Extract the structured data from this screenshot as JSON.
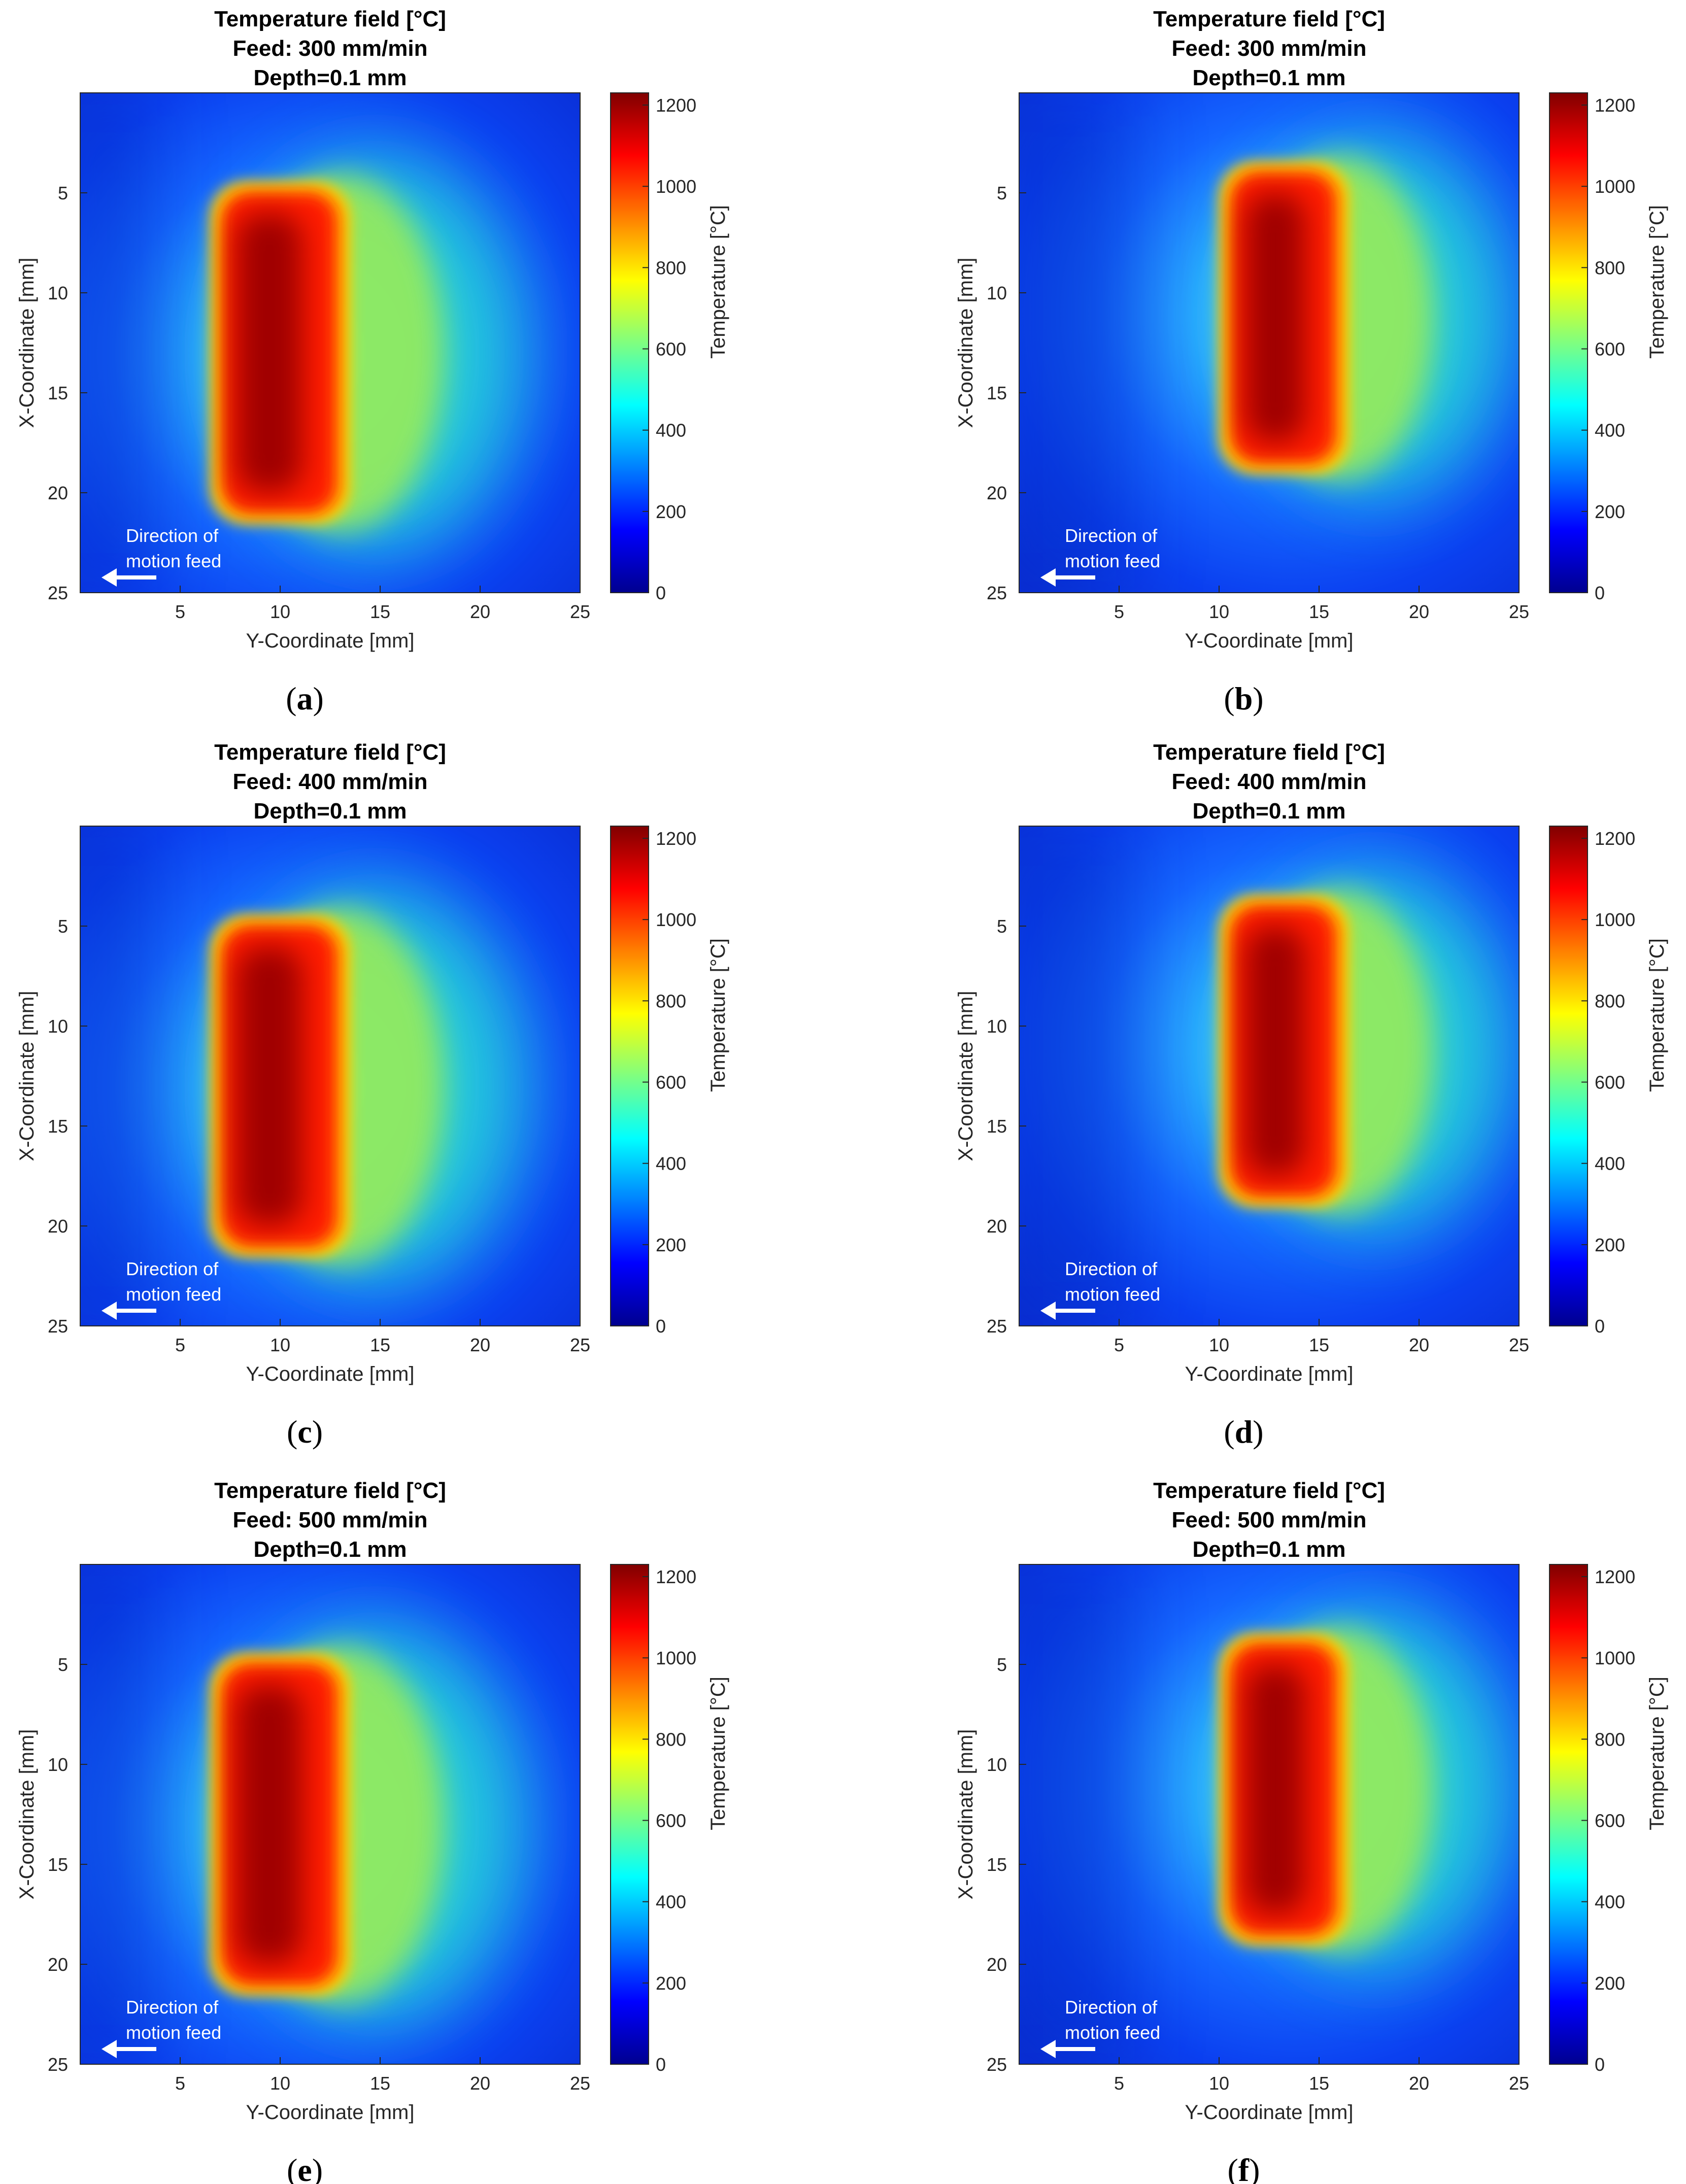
{
  "chart_data": [
    {
      "type": "heatmap",
      "label": "a",
      "title": [
        "Temperature field [°C]",
        "Feed: 300 mm/min",
        "Depth=0.1 mm"
      ],
      "feed_mm_per_min": 300,
      "depth_mm": 0.1,
      "xlabel": "Y-Coordinate [mm]",
      "ylabel": "X-Coordinate [mm]",
      "xlim": [
        0,
        25
      ],
      "ylim": [
        0,
        25
      ],
      "xticks": [
        5,
        10,
        15,
        20,
        25
      ],
      "yticks": [
        5,
        10,
        15,
        20,
        25
      ],
      "colorbar": {
        "label": "Temperature [°C]",
        "ticks": [
          0,
          200,
          400,
          600,
          800,
          1000,
          1200
        ],
        "range": [
          0,
          1230
        ]
      },
      "hot_zone": {
        "y_range_mm": [
          7,
          12.5
        ],
        "x_range_mm": [
          5,
          21
        ],
        "peak_center_y_mm": 10,
        "peak_center_x_mm": 13,
        "peak_temperature_c": 1230
      },
      "annotation": [
        "Direction of",
        "motion feed"
      ]
    },
    {
      "type": "heatmap",
      "label": "b",
      "title": [
        "Temperature field [°C]",
        "Feed: 300 mm/min",
        "Depth=0.1 mm"
      ],
      "feed_mm_per_min": 300,
      "depth_mm": 0.1,
      "xlabel": "Y-Coordinate [mm]",
      "ylabel": "X-Coordinate [mm]",
      "xlim": [
        0,
        25
      ],
      "ylim": [
        0,
        25
      ],
      "xticks": [
        5,
        10,
        15,
        20,
        25
      ],
      "yticks": [
        5,
        10,
        15,
        20,
        25
      ],
      "colorbar": {
        "label": "Temperature [°C]",
        "ticks": [
          0,
          200,
          400,
          600,
          800,
          1000,
          1200
        ],
        "range": [
          0,
          1230
        ]
      },
      "hot_zone": {
        "y_range_mm": [
          10.5,
          15.5
        ],
        "x_range_mm": [
          4,
          18.5
        ],
        "peak_center_y_mm": 12.5,
        "peak_center_x_mm": 11,
        "peak_temperature_c": 1230
      },
      "annotation": [
        "Direction of",
        "motion feed"
      ]
    },
    {
      "type": "heatmap",
      "label": "c",
      "title": [
        "Temperature field [°C]",
        "Feed: 400 mm/min",
        "Depth=0.1 mm"
      ],
      "feed_mm_per_min": 400,
      "depth_mm": 0.1,
      "xlabel": "Y-Coordinate [mm]",
      "ylabel": "X-Coordinate [mm]",
      "xlim": [
        0,
        25
      ],
      "ylim": [
        0,
        25
      ],
      "xticks": [
        5,
        10,
        15,
        20,
        25
      ],
      "yticks": [
        5,
        10,
        15,
        20,
        25
      ],
      "colorbar": {
        "label": "Temperature [°C]",
        "ticks": [
          0,
          200,
          400,
          600,
          800,
          1000,
          1200
        ],
        "range": [
          0,
          1230
        ]
      },
      "hot_zone": {
        "y_range_mm": [
          7,
          12.5
        ],
        "x_range_mm": [
          5,
          21
        ],
        "peak_center_y_mm": 10,
        "peak_center_x_mm": 13,
        "peak_temperature_c": 1230
      },
      "annotation": [
        "Direction of",
        "motion feed"
      ]
    },
    {
      "type": "heatmap",
      "label": "d",
      "title": [
        "Temperature field [°C]",
        "Feed: 400 mm/min",
        "Depth=0.1 mm"
      ],
      "feed_mm_per_min": 400,
      "depth_mm": 0.1,
      "xlabel": "Y-Coordinate [mm]",
      "ylabel": "X-Coordinate [mm]",
      "xlim": [
        0,
        25
      ],
      "ylim": [
        0,
        25
      ],
      "xticks": [
        5,
        10,
        15,
        20,
        25
      ],
      "yticks": [
        5,
        10,
        15,
        20,
        25
      ],
      "colorbar": {
        "label": "Temperature [°C]",
        "ticks": [
          0,
          200,
          400,
          600,
          800,
          1000,
          1200
        ],
        "range": [
          0,
          1230
        ]
      },
      "hot_zone": {
        "y_range_mm": [
          10.5,
          15.5
        ],
        "x_range_mm": [
          4,
          18.5
        ],
        "peak_center_y_mm": 12.5,
        "peak_center_x_mm": 11,
        "peak_temperature_c": 1230
      },
      "annotation": [
        "Direction of",
        "motion feed"
      ]
    },
    {
      "type": "heatmap",
      "label": "e",
      "title": [
        "Temperature field [°C]",
        "Feed: 500 mm/min",
        "Depth=0.1 mm"
      ],
      "feed_mm_per_min": 500,
      "depth_mm": 0.1,
      "xlabel": "Y-Coordinate [mm]",
      "ylabel": "X-Coordinate [mm]",
      "xlim": [
        0,
        25
      ],
      "ylim": [
        0,
        25
      ],
      "xticks": [
        5,
        10,
        15,
        20,
        25
      ],
      "yticks": [
        5,
        10,
        15,
        20,
        25
      ],
      "colorbar": {
        "label": "Temperature [°C]",
        "ticks": [
          0,
          200,
          400,
          600,
          800,
          1000,
          1200
        ],
        "range": [
          0,
          1230
        ]
      },
      "hot_zone": {
        "y_range_mm": [
          7,
          12.5
        ],
        "x_range_mm": [
          5,
          21
        ],
        "peak_center_y_mm": 10,
        "peak_center_x_mm": 13,
        "peak_temperature_c": 1230
      },
      "annotation": [
        "Direction of",
        "motion feed"
      ]
    },
    {
      "type": "heatmap",
      "label": "f",
      "title": [
        "Temperature field [°C]",
        "Feed: 500 mm/min",
        "Depth=0.1 mm"
      ],
      "feed_mm_per_min": 500,
      "depth_mm": 0.1,
      "xlabel": "Y-Coordinate [mm]",
      "ylabel": "X-Coordinate [mm]",
      "xlim": [
        0,
        25
      ],
      "ylim": [
        0,
        25
      ],
      "xticks": [
        5,
        10,
        15,
        20,
        25
      ],
      "yticks": [
        5,
        10,
        15,
        20,
        25
      ],
      "colorbar": {
        "label": "Temperature [°C]",
        "ticks": [
          0,
          200,
          400,
          600,
          800,
          1000,
          1200
        ],
        "range": [
          0,
          1230
        ]
      },
      "hot_zone": {
        "y_range_mm": [
          10.5,
          15.5
        ],
        "x_range_mm": [
          4,
          18.5
        ],
        "peak_center_y_mm": 12.5,
        "peak_center_x_mm": 11,
        "peak_temperature_c": 1230
      },
      "annotation": [
        "Direction of",
        "motion feed"
      ]
    }
  ]
}
